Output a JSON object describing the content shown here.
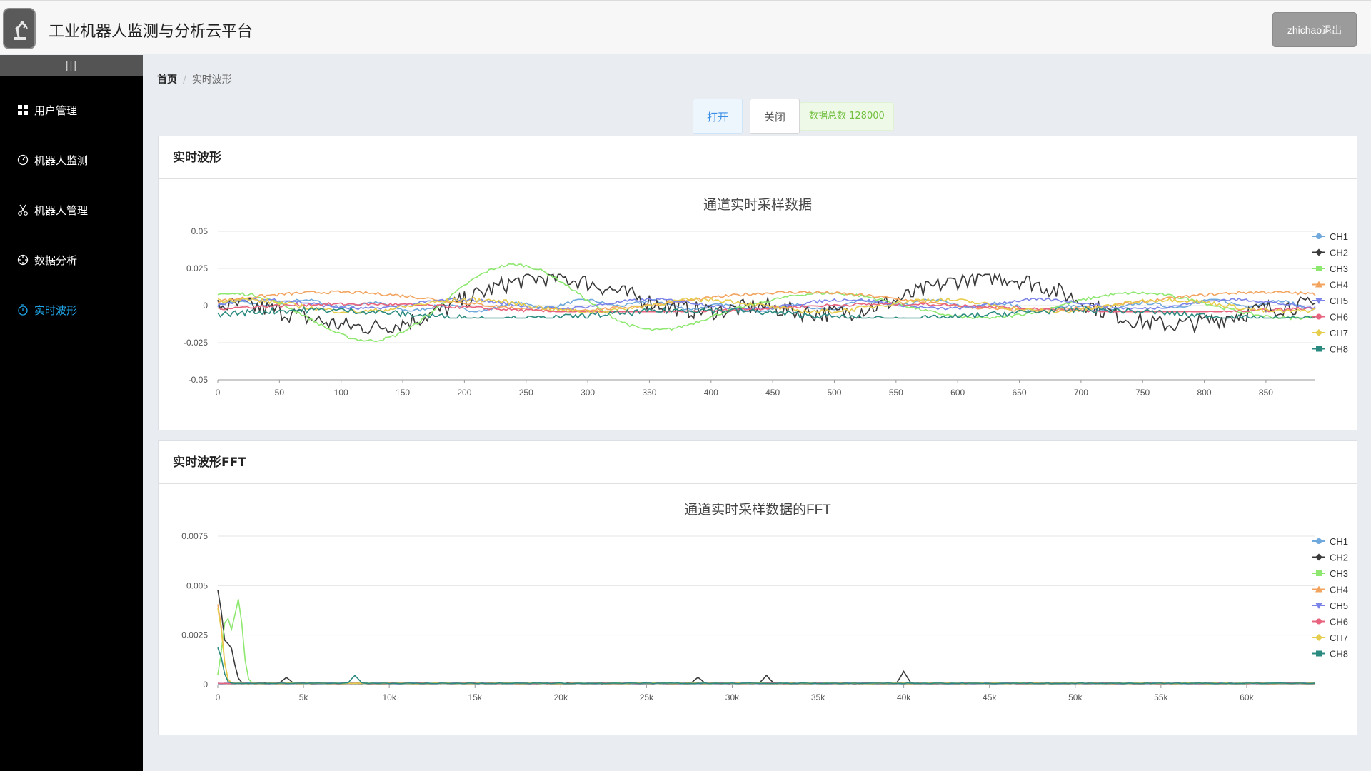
{
  "app": {
    "title": "工业机器人监测与分析云平台",
    "logout_label": "zhichao退出"
  },
  "sidebar": {
    "collapse_label": "|||",
    "items": [
      {
        "label": "用户管理",
        "icon": "grid-icon",
        "active": false
      },
      {
        "label": "机器人监测",
        "icon": "gauge-icon",
        "active": false
      },
      {
        "label": "机器人管理",
        "icon": "scissors-icon",
        "active": false
      },
      {
        "label": "数据分析",
        "icon": "target-icon",
        "active": false
      },
      {
        "label": "实时波形",
        "icon": "timer-icon",
        "active": true
      }
    ]
  },
  "breadcrumb": {
    "home": "首页",
    "current": "实时波形"
  },
  "controls": {
    "open_label": "打开",
    "close_label": "关闭",
    "count_label": "数据总数 128000"
  },
  "colors": {
    "CH1": "#6fa8dc",
    "CH2": "#3a3a3a",
    "CH3": "#8ee86f",
    "CH4": "#f2a35d",
    "CH5": "#7b83e8",
    "CH6": "#e8637e",
    "CH7": "#e6cd4c",
    "CH8": "#2b8a80"
  },
  "waveform_card": {
    "header": "实时波形"
  },
  "fft_card": {
    "header": "实时波形FFT"
  },
  "chart_data": [
    {
      "type": "line",
      "title": "通道实时采样数据",
      "xlabel": "",
      "ylabel": "",
      "xlim": [
        0,
        890
      ],
      "ylim": [
        -0.05,
        0.05
      ],
      "x_ticks": [
        "0",
        "50",
        "100",
        "150",
        "200",
        "250",
        "300",
        "350",
        "400",
        "450",
        "500",
        "550",
        "600",
        "650",
        "700",
        "750",
        "800",
        "850"
      ],
      "y_ticks": [
        "0.05",
        "0.025",
        "0",
        "-0.025",
        "-0.05"
      ],
      "grid": true,
      "legend": "right",
      "series": [
        {
          "name": "CH1",
          "amplitude": 0.004
        },
        {
          "name": "CH2",
          "amplitude": 0.02
        },
        {
          "name": "CH3",
          "amplitude": 0.029
        },
        {
          "name": "CH4",
          "amplitude": 0.01
        },
        {
          "name": "CH5",
          "amplitude": 0.005
        },
        {
          "name": "CH6",
          "amplitude": 0.004
        },
        {
          "name": "CH7",
          "amplitude": 0.005
        },
        {
          "name": "CH8",
          "amplitude": 0.008
        }
      ]
    },
    {
      "type": "line",
      "title": "通道实时采样数据的FFT",
      "xlabel": "",
      "ylabel": "",
      "xlim": [
        0,
        64000
      ],
      "ylim": [
        0,
        0.0075
      ],
      "x_ticks": [
        "0",
        "5k",
        "10k",
        "15k",
        "20k",
        "25k",
        "30k",
        "35k",
        "40k",
        "45k",
        "50k",
        "55k",
        "60k"
      ],
      "y_ticks": [
        "0.0075",
        "0.005",
        "0.0025",
        "0"
      ],
      "grid": true,
      "legend": "right",
      "peaks": [
        {
          "series": "CH2",
          "x": 0,
          "y": 0.0047
        },
        {
          "series": "CH4",
          "x": 0,
          "y": 0.004
        },
        {
          "series": "CH7",
          "x": 0,
          "y": 0.0038
        },
        {
          "series": "CH3",
          "x": 1200,
          "y": 0.0042
        },
        {
          "series": "CH3",
          "x": 500,
          "y": 0.0033
        },
        {
          "series": "CH2",
          "x": 700,
          "y": 0.0019
        },
        {
          "series": "CH8",
          "x": 0,
          "y": 0.0018
        },
        {
          "series": "CH2",
          "x": 4000,
          "y": 0.0003
        },
        {
          "series": "CH8",
          "x": 8000,
          "y": 0.0004
        },
        {
          "series": "CH2",
          "x": 28000,
          "y": 0.0003
        },
        {
          "series": "CH2",
          "x": 32000,
          "y": 0.0004
        },
        {
          "series": "CH2",
          "x": 40000,
          "y": 0.0006
        }
      ],
      "series": [
        {
          "name": "CH1"
        },
        {
          "name": "CH2"
        },
        {
          "name": "CH3"
        },
        {
          "name": "CH4"
        },
        {
          "name": "CH5"
        },
        {
          "name": "CH6"
        },
        {
          "name": "CH7"
        },
        {
          "name": "CH8"
        }
      ]
    }
  ]
}
